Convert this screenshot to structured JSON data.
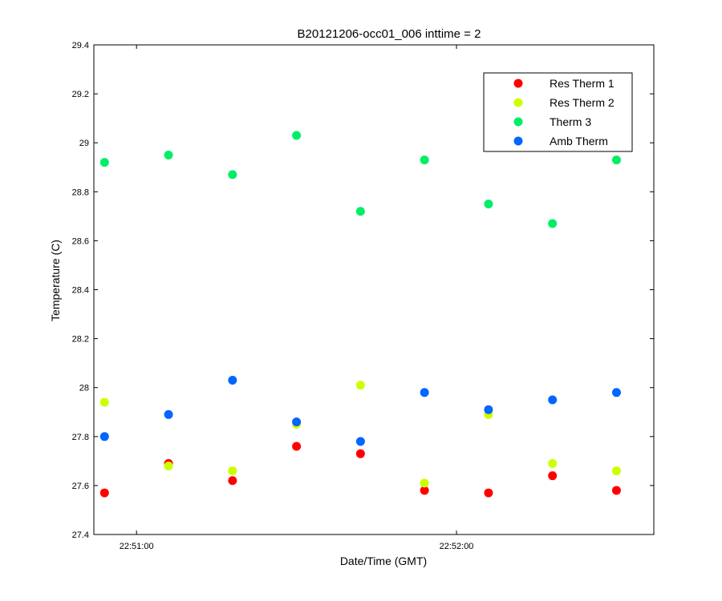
{
  "chart_data": {
    "type": "scatter",
    "title": "B20121206-occ01_006 inttime = 2",
    "xlabel": "Date/Time (GMT)",
    "ylabel": "Temperature (C)",
    "ylim": [
      27.4,
      29.4
    ],
    "yticks": [
      27.4,
      27.6,
      27.8,
      28,
      28.2,
      28.4,
      28.6,
      28.8,
      29,
      29.2,
      29.4
    ],
    "ytick_labels": [
      "27.4",
      "27.6",
      "27.8",
      "28",
      "28.2",
      "28.4",
      "28.6",
      "28.8",
      "29",
      "29.2",
      "29.4"
    ],
    "xlim": [
      "22:50:52",
      "22:52:37"
    ],
    "xticks": [
      "22:51:00",
      "22:52:00"
    ],
    "xtick_labels": [
      "22:51:00",
      "22:52:00"
    ],
    "x": [
      "22:50:54",
      "22:51:06",
      "22:51:18",
      "22:51:30",
      "22:51:42",
      "22:51:54",
      "22:52:06",
      "22:52:18",
      "22:52:30"
    ],
    "legend_position": "top-right",
    "grid": false,
    "series": [
      {
        "name": "Res Therm 1",
        "color": "#ff0000",
        "values": [
          27.57,
          27.69,
          27.62,
          27.76,
          27.73,
          27.58,
          27.57,
          27.64,
          27.58
        ]
      },
      {
        "name": "Res Therm 2",
        "color": "#ccff00",
        "values": [
          27.94,
          27.68,
          27.66,
          27.85,
          28.01,
          27.61,
          27.89,
          27.69,
          27.66
        ]
      },
      {
        "name": "Therm 3",
        "color": "#00ee66",
        "values": [
          28.92,
          28.95,
          28.87,
          29.03,
          28.72,
          28.93,
          28.75,
          28.67,
          28.93
        ]
      },
      {
        "name": "Amb Therm",
        "color": "#0066ff",
        "values": [
          27.8,
          27.89,
          28.03,
          27.86,
          27.78,
          27.98,
          27.91,
          27.95,
          27.98
        ]
      }
    ]
  }
}
